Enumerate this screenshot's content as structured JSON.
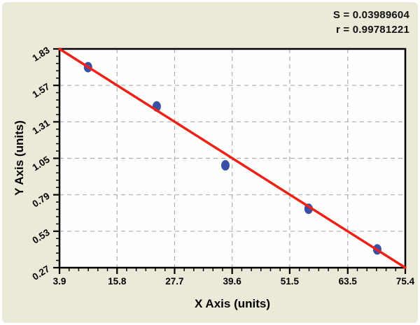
{
  "page": {
    "background": "#ffffff",
    "canvas_background": "#EBE9D8"
  },
  "stats": {
    "s_value": "S = 0.03989604",
    "r_value": "r = 0.99781221"
  },
  "chart_data": {
    "type": "scatter",
    "title": "",
    "xlabel": "X Axis (units)",
    "ylabel": "Y Axis (units)",
    "xlim": [
      3.9,
      75.4
    ],
    "ylim": [
      0.27,
      1.83
    ],
    "x_ticks": [
      "3.9",
      "15.8",
      "27.7",
      "39.6",
      "51.5",
      "63.5",
      "75.4"
    ],
    "y_ticks": [
      "0.27",
      "0.53",
      "0.79",
      "1.05",
      "1.31",
      "1.57",
      "1.83"
    ],
    "grid": true,
    "legend_position": "none",
    "annotations": [
      "S = 0.03989604",
      "r = 0.99781221"
    ],
    "series": [
      {
        "name": "standard-points",
        "type": "scatter",
        "x": [
          9.8,
          24.0,
          38.2,
          55.4,
          69.6
        ],
        "y": [
          1.7,
          1.42,
          1.0,
          0.69,
          0.4
        ]
      },
      {
        "name": "regression-line",
        "type": "line",
        "x": [
          3.9,
          75.4
        ],
        "y": [
          1.83,
          0.27
        ]
      }
    ],
    "colors": {
      "point": "#3A50A5",
      "line": "#EE2017",
      "grid": "#ADADAD",
      "axis": "#000000",
      "plot_bg": "#FEFEFC"
    }
  }
}
